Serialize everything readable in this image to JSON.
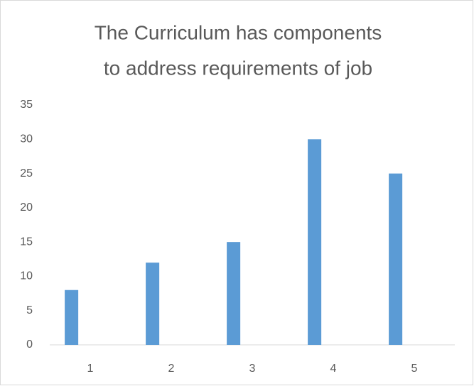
{
  "chart_data": {
    "type": "bar",
    "title": [
      "The Curriculum has components",
      "to address requirements of job"
    ],
    "categories": [
      "1",
      "2",
      "3",
      "4",
      "5"
    ],
    "values": [
      8,
      12,
      15,
      30,
      25
    ],
    "color": "#5b9bd5",
    "ylim": [
      0,
      35
    ],
    "yticks": [
      0,
      5,
      10,
      15,
      20,
      25,
      30,
      35
    ],
    "grid": false
  }
}
